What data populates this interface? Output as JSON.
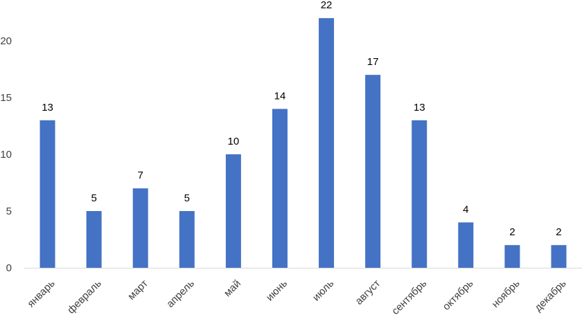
{
  "chart_data": {
    "type": "bar",
    "title": "",
    "xlabel": "",
    "ylabel": "",
    "categories": [
      "январь",
      "февраль",
      "март",
      "апрель",
      "май",
      "июнь",
      "июль",
      "август",
      "сентябрь",
      "октябрь",
      "ноябрь",
      "декабрь"
    ],
    "values": [
      13,
      5,
      7,
      5,
      10,
      14,
      22,
      17,
      13,
      4,
      2,
      2
    ],
    "ylim": [
      0,
      22
    ],
    "yticks": [
      0,
      5,
      10,
      15,
      20
    ],
    "grid": false,
    "legend": "none",
    "data_labels": true,
    "bar_color": "#4472C4",
    "axis_color": "#D9D9D9"
  }
}
